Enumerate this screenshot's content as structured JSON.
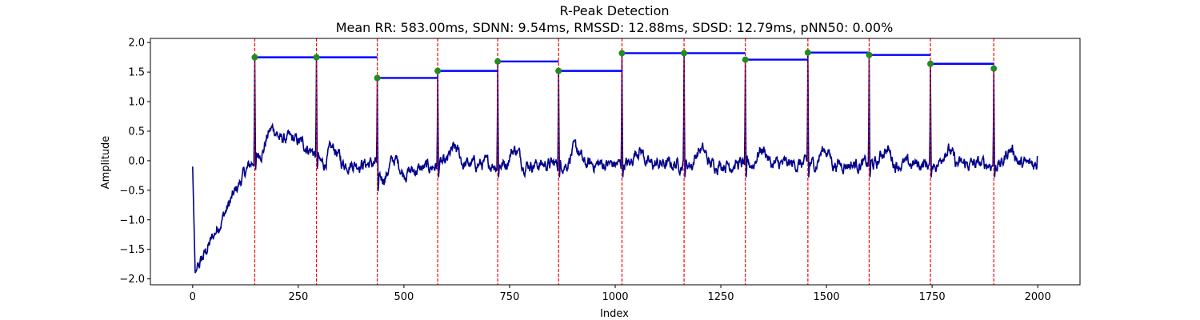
{
  "chart_data": {
    "type": "line",
    "title": "R-Peak Detection",
    "subtitle": "Mean RR: 583.00ms, SDNN: 9.54ms, RMSSD: 12.88ms, SDSD: 12.79ms, pNN50: 0.00%",
    "xlabel": "Index",
    "ylabel": "Amplitude",
    "xlim": [
      -100,
      2100
    ],
    "ylim": [
      -2.1,
      2.07
    ],
    "x_ticks": [
      0,
      250,
      500,
      750,
      1000,
      1250,
      1500,
      1750,
      2000
    ],
    "y_ticks": [
      -2.0,
      -1.5,
      -1.0,
      -0.5,
      0.0,
      0.5,
      1.0,
      1.5,
      2.0
    ],
    "grid": false,
    "colors": {
      "signal": "#00008b",
      "peak_line": "#ff0000",
      "rr_segment": "#0000ff",
      "peak_marker": "#228b22"
    },
    "signal": {
      "length": 2000,
      "start_value": -0.1,
      "end_value": 0.08
    },
    "r_peaks": [
      {
        "x": 147,
        "y": 1.75
      },
      {
        "x": 293,
        "y": 1.75
      },
      {
        "x": 437,
        "y": 1.4
      },
      {
        "x": 580,
        "y": 1.52
      },
      {
        "x": 722,
        "y": 1.68
      },
      {
        "x": 866,
        "y": 1.52
      },
      {
        "x": 1016,
        "y": 1.82
      },
      {
        "x": 1163,
        "y": 1.82
      },
      {
        "x": 1308,
        "y": 1.71
      },
      {
        "x": 1456,
        "y": 1.83
      },
      {
        "x": 1601,
        "y": 1.79
      },
      {
        "x": 1746,
        "y": 1.64
      },
      {
        "x": 1896,
        "y": 1.56
      }
    ],
    "rr_segments": [
      {
        "x_start": 147,
        "x_end": 437,
        "y": 1.75
      },
      {
        "x_start": 437,
        "x_end": 580,
        "y": 1.4
      },
      {
        "x_start": 580,
        "x_end": 722,
        "y": 1.52
      },
      {
        "x_start": 722,
        "x_end": 866,
        "y": 1.68
      },
      {
        "x_start": 866,
        "x_end": 1016,
        "y": 1.52
      },
      {
        "x_start": 1016,
        "x_end": 1308,
        "y": 1.82
      },
      {
        "x_start": 1308,
        "x_end": 1456,
        "y": 1.71
      },
      {
        "x_start": 1456,
        "x_end": 1601,
        "y": 1.83
      },
      {
        "x_start": 1601,
        "x_end": 1746,
        "y": 1.79
      },
      {
        "x_start": 1746,
        "x_end": 1896,
        "y": 1.64
      }
    ]
  }
}
